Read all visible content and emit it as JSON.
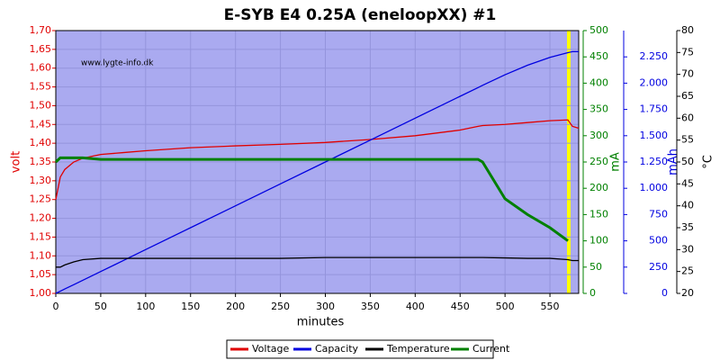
{
  "chart_data": {
    "type": "line",
    "title": "E-SYB E4 0.25A (eneloopXX) #1",
    "watermark": "www.lygte-info.dk",
    "xlabel": "minutes",
    "ylabel": "volt",
    "y2label": "mA",
    "y3label": "mAh",
    "y4label": "°C",
    "x": [
      0,
      5,
      10,
      20,
      30,
      50,
      75,
      100,
      150,
      200,
      250,
      300,
      350,
      400,
      450,
      470,
      475,
      500,
      525,
      550,
      570,
      575,
      582
    ],
    "xlim": [
      0,
      582
    ],
    "xticks": [
      0,
      50,
      100,
      150,
      200,
      250,
      300,
      350,
      400,
      450,
      500,
      550
    ],
    "ylim": [
      1.0,
      1.7
    ],
    "yticks": [
      {
        "value": 1.0,
        "label": "1,00"
      },
      {
        "value": 1.05,
        "label": "1,05"
      },
      {
        "value": 1.1,
        "label": "1,10"
      },
      {
        "value": 1.15,
        "label": "1,15"
      },
      {
        "value": 1.2,
        "label": "1,20"
      },
      {
        "value": 1.25,
        "label": "1,25"
      },
      {
        "value": 1.3,
        "label": "1,30"
      },
      {
        "value": 1.35,
        "label": "1,35"
      },
      {
        "value": 1.4,
        "label": "1,40"
      },
      {
        "value": 1.45,
        "label": "1,45"
      },
      {
        "value": 1.5,
        "label": "1,50"
      },
      {
        "value": 1.55,
        "label": "1,55"
      },
      {
        "value": 1.6,
        "label": "1,60"
      },
      {
        "value": 1.65,
        "label": "1,65"
      },
      {
        "value": 1.7,
        "label": "1,70"
      }
    ],
    "y2lim": [
      0,
      500
    ],
    "y2ticks": [
      0,
      50,
      100,
      150,
      200,
      250,
      300,
      350,
      400,
      450,
      500
    ],
    "y3lim": [
      0,
      2500
    ],
    "y3ticks": [
      0,
      250,
      500,
      750,
      {
        "value": 1000,
        "label": "1.000"
      },
      {
        "value": 1250,
        "label": "1.250"
      },
      {
        "value": 1500,
        "label": "1.500"
      },
      {
        "value": 1750,
        "label": "1.750"
      },
      {
        "value": 2000,
        "label": "2.000"
      },
      {
        "value": 2250,
        "label": "2.250"
      }
    ],
    "y4lim": [
      20,
      80
    ],
    "y4ticks": [
      20,
      25,
      30,
      35,
      40,
      45,
      50,
      55,
      60,
      65,
      70,
      75,
      80
    ],
    "grid": true,
    "legend": "bottom",
    "series": [
      {
        "name": "Voltage",
        "color": "#e00000",
        "axis": "y",
        "values": [
          1.25,
          1.31,
          1.33,
          1.35,
          1.36,
          1.37,
          1.375,
          1.38,
          1.388,
          1.393,
          1.397,
          1.402,
          1.41,
          1.42,
          1.435,
          1.445,
          1.447,
          1.45,
          1.455,
          1.46,
          1.462,
          1.445,
          1.44
        ]
      },
      {
        "name": "Capacity",
        "color": "#0000e0",
        "axis": "y3",
        "values": [
          0,
          21,
          42,
          83,
          125,
          208,
          312,
          417,
          625,
          833,
          1042,
          1250,
          1458,
          1667,
          1875,
          1958,
          1979,
          2080,
          2170,
          2245,
          2290,
          2300,
          2300
        ]
      },
      {
        "name": "Temperature",
        "color": "#000000",
        "axis": "y4",
        "values": [
          26,
          26,
          26.5,
          27.2,
          27.7,
          28,
          28,
          28,
          28,
          28,
          28,
          28.2,
          28.2,
          28.2,
          28.2,
          28.2,
          28.2,
          28.1,
          28,
          28,
          27.7,
          27.5,
          27.5
        ]
      },
      {
        "name": "Current",
        "color": "#008000",
        "axis": "y2",
        "values": [
          250,
          258,
          258,
          258,
          258,
          255,
          255,
          255,
          255,
          255,
          255,
          255,
          255,
          255,
          255,
          255,
          250,
          180,
          150,
          125,
          100,
          null,
          null
        ]
      }
    ]
  }
}
